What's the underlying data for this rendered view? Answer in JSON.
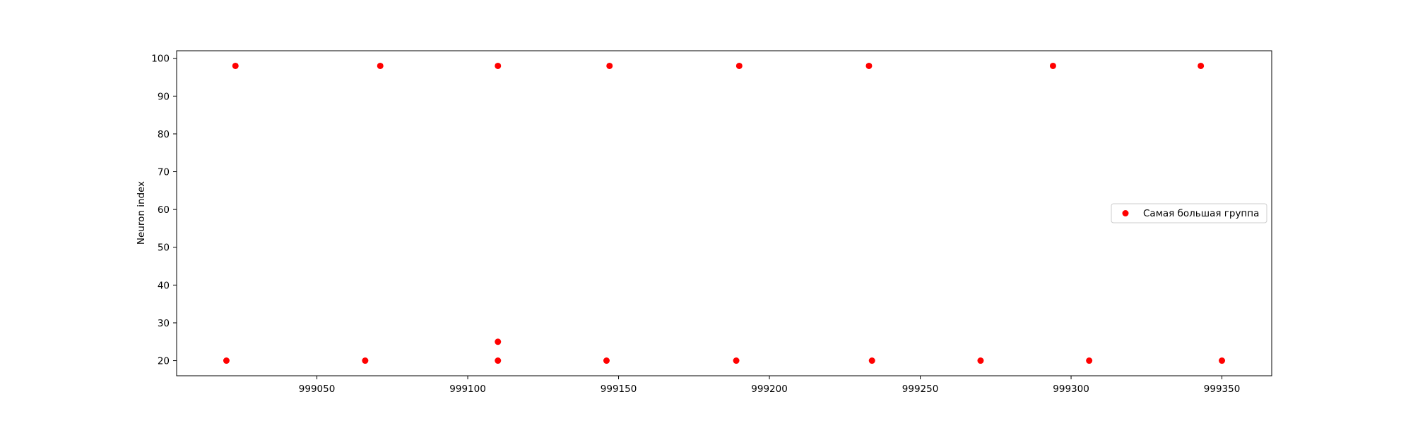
{
  "chart_data": {
    "type": "scatter",
    "title": "",
    "xlabel": "",
    "ylabel": "Neuron index",
    "xlim": [
      999003.5,
      999366.5
    ],
    "ylim": [
      16,
      102
    ],
    "xticks": [
      999050,
      999100,
      999150,
      999200,
      999250,
      999300,
      999350
    ],
    "yticks": [
      20,
      30,
      40,
      50,
      60,
      70,
      80,
      90,
      100
    ],
    "grid": false,
    "legend_position": "center-right",
    "series": [
      {
        "name": "Самая большая группа",
        "color": "#ff0000",
        "points": [
          {
            "x": 999020,
            "y": 20
          },
          {
            "x": 999023,
            "y": 98
          },
          {
            "x": 999066,
            "y": 20
          },
          {
            "x": 999071,
            "y": 98
          },
          {
            "x": 999110,
            "y": 98
          },
          {
            "x": 999110,
            "y": 25
          },
          {
            "x": 999110,
            "y": 20
          },
          {
            "x": 999146,
            "y": 20
          },
          {
            "x": 999147,
            "y": 98
          },
          {
            "x": 999189,
            "y": 20
          },
          {
            "x": 999190,
            "y": 98
          },
          {
            "x": 999233,
            "y": 98
          },
          {
            "x": 999234,
            "y": 20
          },
          {
            "x": 999270,
            "y": 20
          },
          {
            "x": 999294,
            "y": 98
          },
          {
            "x": 999306,
            "y": 20
          },
          {
            "x": 999343,
            "y": 98
          },
          {
            "x": 999350,
            "y": 20
          }
        ]
      }
    ]
  }
}
